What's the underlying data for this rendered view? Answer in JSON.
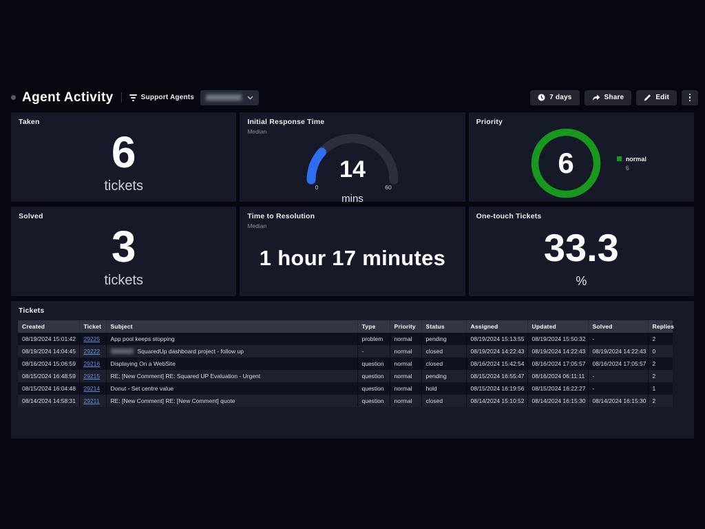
{
  "header": {
    "title": "Agent Activity",
    "filter_label": "Support Agents",
    "buttons": {
      "timeframe": "7 days",
      "share": "Share",
      "edit": "Edit"
    },
    "icons": {
      "timeframe": "clock-icon",
      "share": "share-arrow-icon",
      "edit": "pencil-icon",
      "more": "kebab-menu-icon",
      "filter": "funnel-icon",
      "dropdown": "chevron-down-icon"
    }
  },
  "colors": {
    "accent_blue": "#2e6ef0",
    "accent_green": "#18991e",
    "link_blue": "#5d8ed9",
    "tile_bg": "#161927",
    "page_bg": "#06070f"
  },
  "tiles": {
    "taken": {
      "title": "Taken",
      "value": "6",
      "unit": "tickets"
    },
    "initial_response": {
      "title": "Initial Response Time",
      "subtitle": "Median",
      "value": "14",
      "unit": "mins",
      "gauge": {
        "min": 0,
        "max": 60,
        "value": 14,
        "color": "#2e6ef0",
        "track_color": "#2c303d"
      }
    },
    "priority": {
      "title": "Priority",
      "value": "6",
      "legend": [
        {
          "label": "normal",
          "count": "6",
          "color": "#18991e"
        }
      ]
    },
    "solved": {
      "title": "Solved",
      "value": "3",
      "unit": "tickets"
    },
    "time_to_resolution": {
      "title": "Time to Resolution",
      "subtitle": "Median",
      "value": "1 hour 17 minutes"
    },
    "one_touch": {
      "title": "One-touch Tickets",
      "value": "33.3",
      "unit": "%"
    }
  },
  "tickets": {
    "title": "Tickets",
    "columns": [
      "Created",
      "Ticket",
      "Subject",
      "Type",
      "Priority",
      "Status",
      "Assigned",
      "Updated",
      "Solved",
      "Replies"
    ],
    "rows": [
      {
        "created": "08/19/2024 15:01:42",
        "ticket": "29225",
        "subject": "App pool keeps stopping",
        "type": "problem",
        "priority": "normal",
        "status": "pending",
        "assigned": "08/19/2024 15:13:55",
        "updated": "08/19/2024 15:50:32",
        "solved": "-",
        "replies": "2"
      },
      {
        "created": "08/19/2024 14:04:45",
        "ticket": "29222",
        "subject": "SquaredUp dashboard project - follow up",
        "redacted_prefix": true,
        "type": "-",
        "priority": "normal",
        "status": "closed",
        "assigned": "08/19/2024 14:22:43",
        "updated": "08/19/2024 14:22:43",
        "solved": "08/19/2024 14:22:43",
        "replies": "0"
      },
      {
        "created": "08/16/2024 15:06:59",
        "ticket": "29216",
        "subject": "Displaying On a WebSite",
        "type": "question",
        "priority": "normal",
        "status": "closed",
        "assigned": "08/16/2024 15:42:54",
        "updated": "08/16/2024 17:05:57",
        "solved": "08/16/2024 17:05:57",
        "replies": "2"
      },
      {
        "created": "08/15/2024 16:48:59",
        "ticket": "29215",
        "subject": "RE: [New Comment] RE: Squared UP Evaluation - Urgent",
        "type": "question",
        "priority": "normal",
        "status": "pending",
        "assigned": "08/15/2024 16:55:47",
        "updated": "08/16/2024 06:11:11",
        "solved": "-",
        "replies": "2"
      },
      {
        "created": "08/15/2024 16:04:48",
        "ticket": "29214",
        "subject": "Donut - Set centre value",
        "type": "question",
        "priority": "normal",
        "status": "hold",
        "assigned": "08/15/2024 16:19:56",
        "updated": "08/15/2024 16:22:27",
        "solved": "-",
        "replies": "1"
      },
      {
        "created": "08/14/2024 14:58:31",
        "ticket": "29211",
        "subject": "RE: [New Comment] RE: [New Comment] quote",
        "type": "question",
        "priority": "normal",
        "status": "closed",
        "assigned": "08/14/2024 15:10:52",
        "updated": "08/14/2024 16:15:30",
        "solved": "08/14/2024 16:15:30",
        "replies": "2"
      }
    ]
  }
}
